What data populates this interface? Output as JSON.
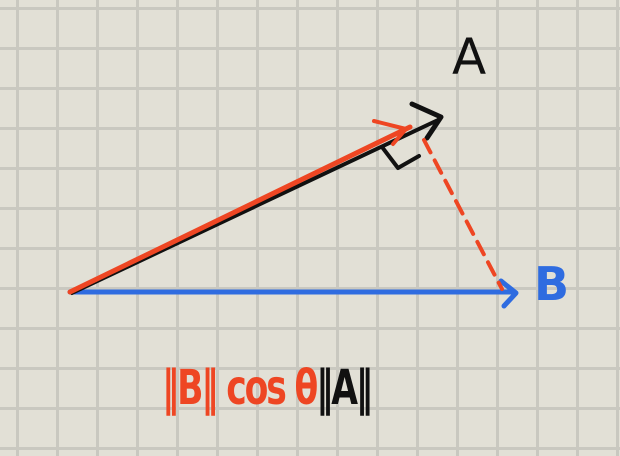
{
  "labels": {
    "vector_a": "A",
    "vector_b": "B"
  },
  "formula": {
    "red_part": "‖B‖ cos θ",
    "black_part": "‖A‖"
  },
  "colors": {
    "background": "#e2e0d6",
    "grid": "#c9c8c0",
    "vector_a": "#111111",
    "vector_b": "#2f6ce0",
    "projection": "#ee4623"
  }
}
